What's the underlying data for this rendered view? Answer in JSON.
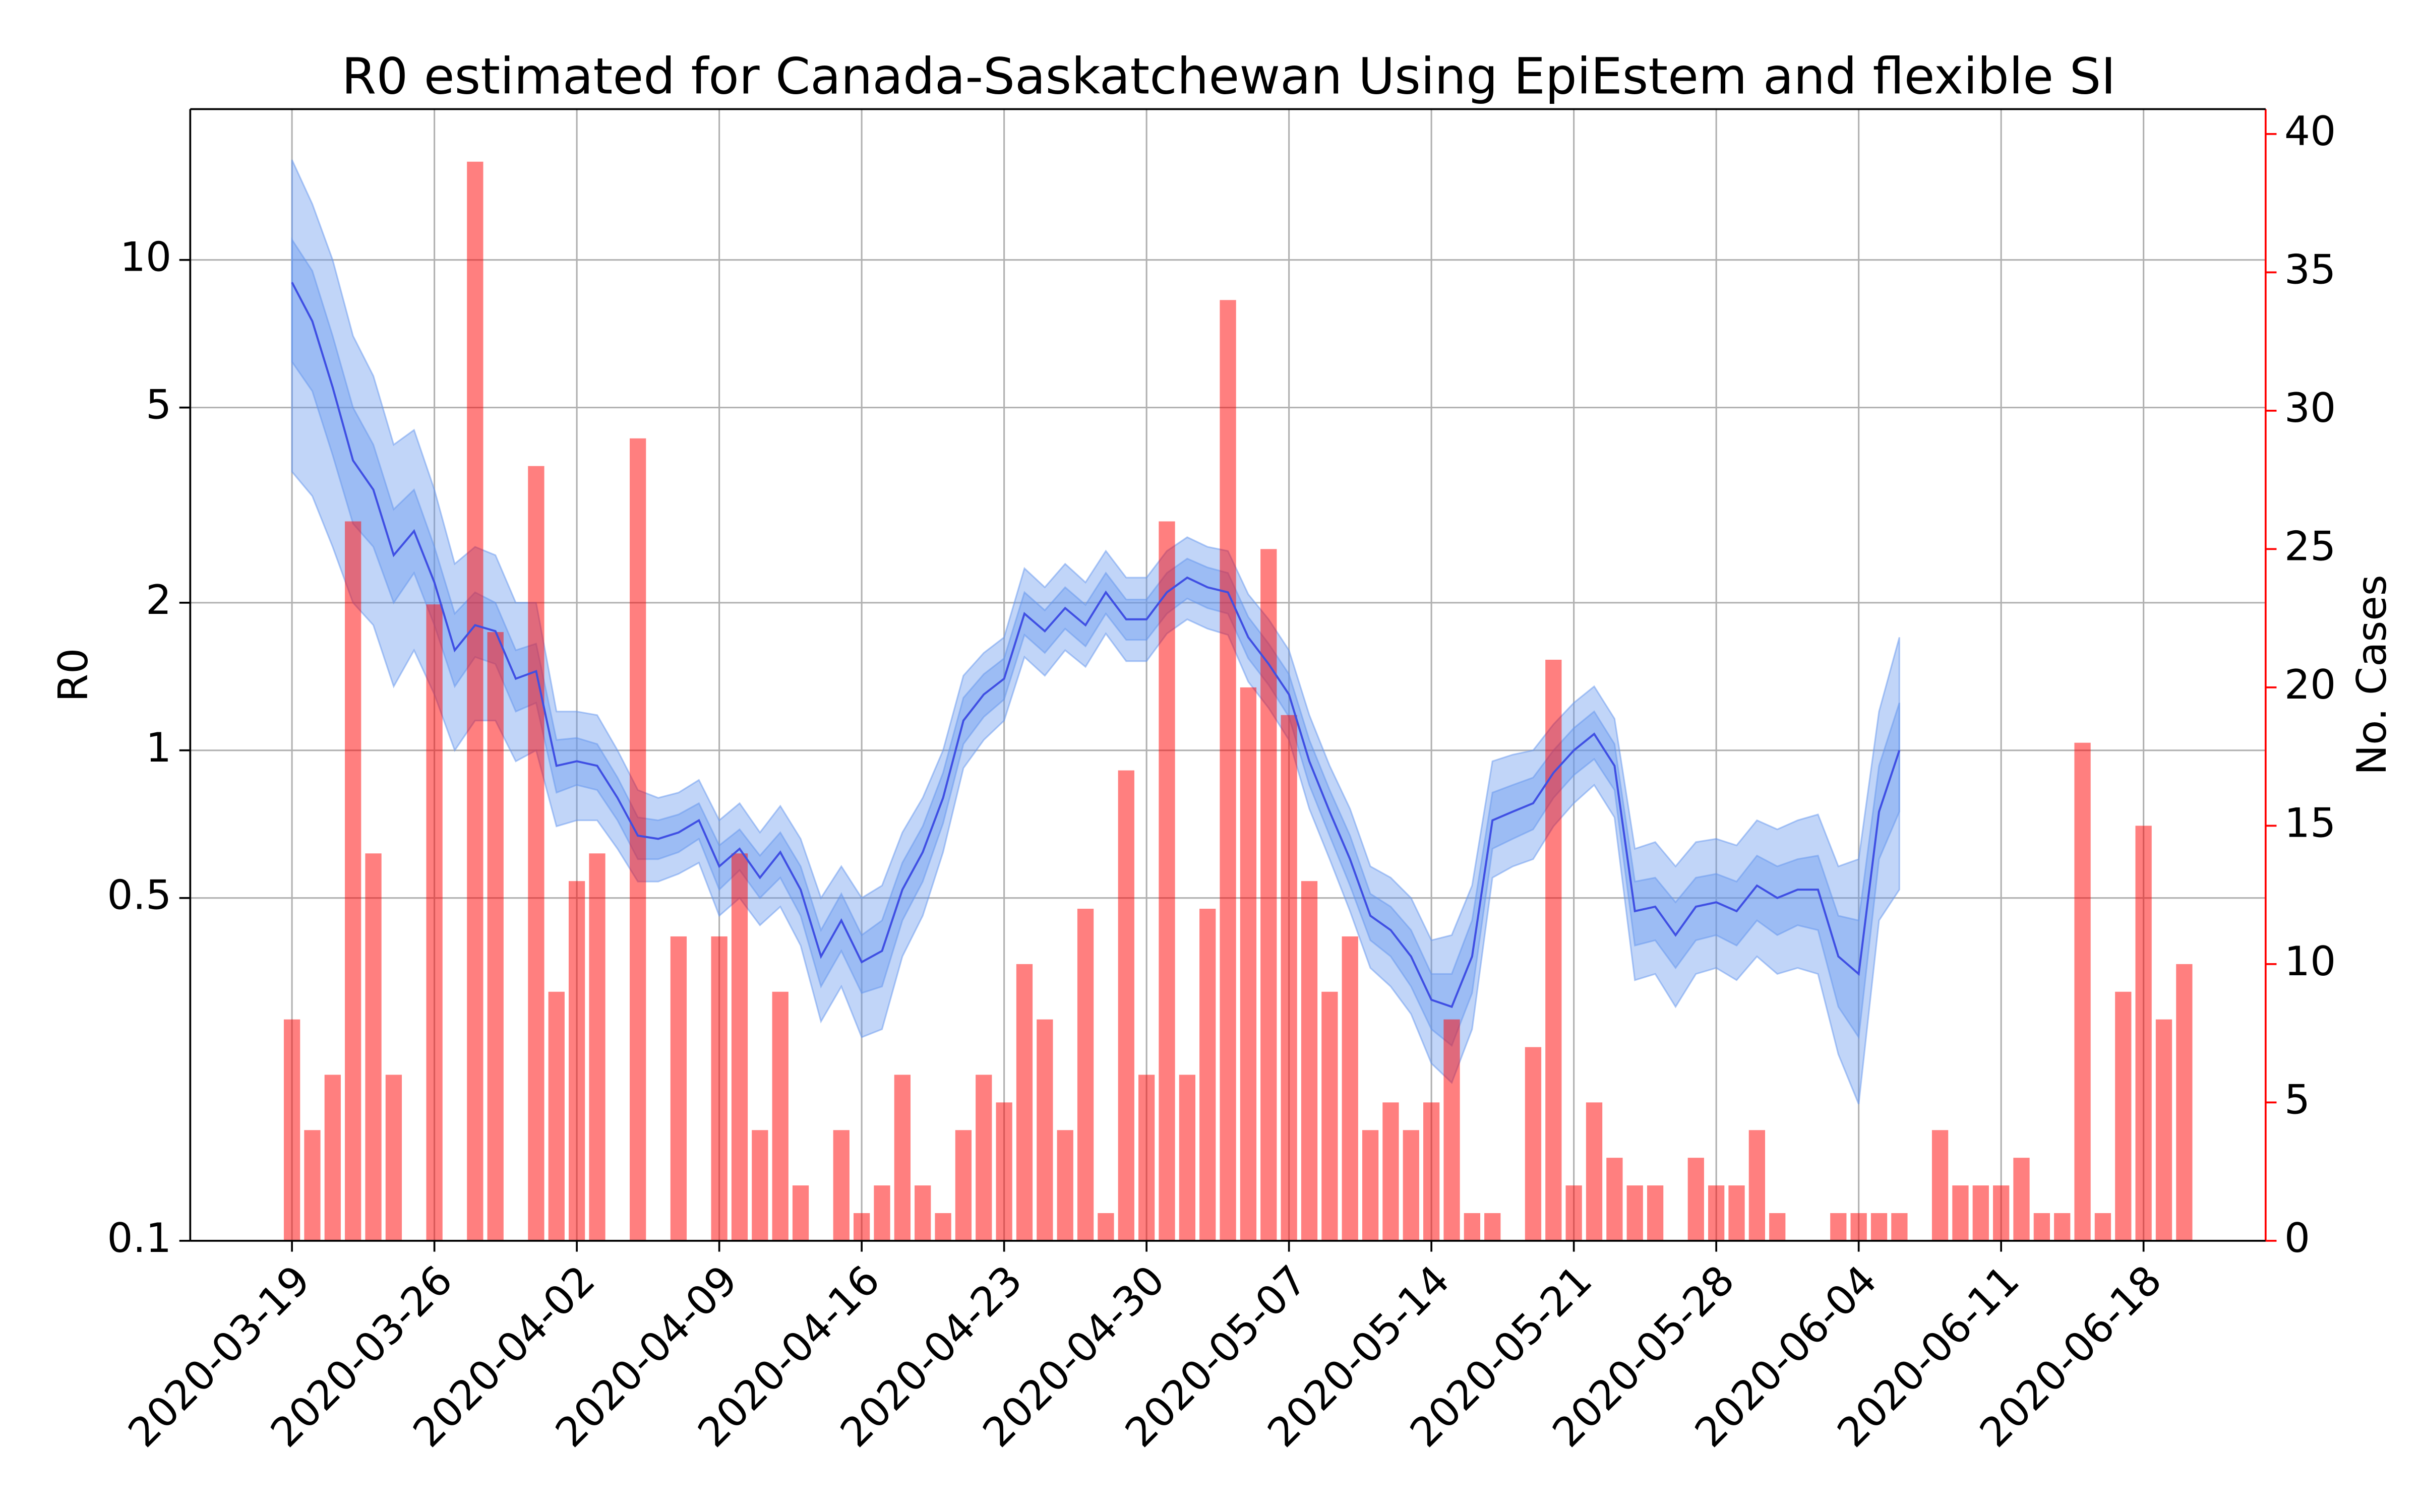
{
  "chart_data": {
    "type": "combo",
    "title": "R0 estimated for Canada-Saskatchewan Using EpiEstem and flexible SI",
    "ylabel": "R0",
    "y2label": "No. Cases",
    "x": [
      "2020-03-19",
      "2020-03-20",
      "2020-03-21",
      "2020-03-22",
      "2020-03-23",
      "2020-03-24",
      "2020-03-25",
      "2020-03-26",
      "2020-03-27",
      "2020-03-28",
      "2020-03-29",
      "2020-03-30",
      "2020-03-31",
      "2020-04-01",
      "2020-04-02",
      "2020-04-03",
      "2020-04-04",
      "2020-04-05",
      "2020-04-06",
      "2020-04-07",
      "2020-04-08",
      "2020-04-09",
      "2020-04-10",
      "2020-04-11",
      "2020-04-12",
      "2020-04-13",
      "2020-04-14",
      "2020-04-15",
      "2020-04-16",
      "2020-04-17",
      "2020-04-18",
      "2020-04-19",
      "2020-04-20",
      "2020-04-21",
      "2020-04-22",
      "2020-04-23",
      "2020-04-24",
      "2020-04-25",
      "2020-04-26",
      "2020-04-27",
      "2020-04-28",
      "2020-04-29",
      "2020-04-30",
      "2020-05-01",
      "2020-05-02",
      "2020-05-03",
      "2020-05-04",
      "2020-05-05",
      "2020-05-06",
      "2020-05-07",
      "2020-05-08",
      "2020-05-09",
      "2020-05-10",
      "2020-05-11",
      "2020-05-12",
      "2020-05-13",
      "2020-05-14",
      "2020-05-15",
      "2020-05-16",
      "2020-05-17",
      "2020-05-18",
      "2020-05-19",
      "2020-05-20",
      "2020-05-21",
      "2020-05-22",
      "2020-05-23",
      "2020-05-24",
      "2020-05-25",
      "2020-05-26",
      "2020-05-27",
      "2020-05-28",
      "2020-05-29",
      "2020-05-30",
      "2020-05-31",
      "2020-06-01",
      "2020-06-02",
      "2020-06-03",
      "2020-06-04",
      "2020-06-05",
      "2020-06-06",
      "2020-06-07",
      "2020-06-08",
      "2020-06-09",
      "2020-06-10",
      "2020-06-11",
      "2020-06-12",
      "2020-06-13",
      "2020-06-14",
      "2020-06-15",
      "2020-06-16",
      "2020-06-17",
      "2020-06-18",
      "2020-06-19",
      "2020-06-20"
    ],
    "xlim": [
      "2020-03-14",
      "2020-06-24"
    ],
    "xticks": [
      "2020-03-19",
      "2020-03-26",
      "2020-04-02",
      "2020-04-09",
      "2020-04-16",
      "2020-04-23",
      "2020-04-30",
      "2020-05-07",
      "2020-05-14",
      "2020-05-21",
      "2020-05-28",
      "2020-06-04",
      "2020-06-11",
      "2020-06-18"
    ],
    "ylim": [
      0.1,
      20.3
    ],
    "yticks": [
      0.1,
      0.5,
      1,
      2,
      5,
      10
    ],
    "log_y": true,
    "y2lim": [
      0,
      40.9
    ],
    "y2ticks": [
      0,
      5,
      10,
      15,
      20,
      25,
      30,
      35,
      40
    ],
    "y2color": "#ff0000",
    "grid": true,
    "series": [
      {
        "type": "band",
        "color": "#6495ed",
        "lower": [
          3.7,
          3.3,
          2.6,
          2.0,
          1.8,
          1.35,
          1.6,
          1.3,
          1.0,
          1.15,
          1.15,
          0.95,
          1.0,
          0.7,
          0.72,
          0.72,
          0.63,
          0.54,
          0.54,
          0.56,
          0.59,
          0.46,
          0.5,
          0.44,
          0.48,
          0.4,
          0.28,
          0.33,
          0.26,
          0.27,
          0.38,
          0.46,
          0.62,
          0.92,
          1.05,
          1.15,
          1.55,
          1.42,
          1.6,
          1.48,
          1.73,
          1.52,
          1.52,
          1.73,
          1.85,
          1.77,
          1.72,
          1.38,
          1.22,
          1.05,
          0.76,
          0.6,
          0.47,
          0.36,
          0.33,
          0.29,
          0.23,
          0.21,
          0.27,
          0.55,
          0.58,
          0.6,
          0.7,
          0.78,
          0.85,
          0.73,
          0.34,
          0.35,
          0.3,
          0.35,
          0.36,
          0.34,
          0.38,
          0.35,
          0.36,
          0.35,
          0.24,
          0.19,
          0.45,
          0.52,
          null,
          null,
          null,
          null,
          null,
          null,
          null,
          null,
          null,
          null,
          null,
          null,
          null,
          null
        ],
        "upper": [
          16,
          13,
          10,
          7.0,
          5.8,
          4.2,
          4.5,
          3.4,
          2.4,
          2.6,
          2.5,
          2.0,
          2.0,
          1.2,
          1.2,
          1.18,
          1.0,
          0.83,
          0.8,
          0.82,
          0.87,
          0.72,
          0.78,
          0.68,
          0.77,
          0.66,
          0.5,
          0.58,
          0.5,
          0.53,
          0.68,
          0.8,
          1.0,
          1.42,
          1.58,
          1.7,
          2.35,
          2.15,
          2.4,
          2.2,
          2.55,
          2.25,
          2.25,
          2.55,
          2.72,
          2.6,
          2.55,
          2.08,
          1.85,
          1.6,
          1.18,
          0.93,
          0.76,
          0.58,
          0.55,
          0.5,
          0.41,
          0.42,
          0.53,
          0.95,
          0.98,
          1.0,
          1.13,
          1.25,
          1.35,
          1.16,
          0.63,
          0.65,
          0.58,
          0.65,
          0.66,
          0.64,
          0.72,
          0.69,
          0.72,
          0.74,
          0.58,
          0.6,
          1.2,
          1.7,
          null,
          null,
          null,
          null,
          null,
          null,
          null,
          null,
          null,
          null,
          null,
          null,
          null,
          null
        ]
      },
      {
        "type": "band",
        "color": "#6495ed",
        "lower": [
          6.2,
          5.4,
          4.0,
          2.9,
          2.6,
          2.0,
          2.3,
          1.8,
          1.35,
          1.55,
          1.5,
          1.2,
          1.25,
          0.82,
          0.85,
          0.83,
          0.72,
          0.6,
          0.6,
          0.62,
          0.66,
          0.52,
          0.57,
          0.5,
          0.55,
          0.46,
          0.33,
          0.39,
          0.32,
          0.33,
          0.45,
          0.54,
          0.71,
          1.03,
          1.17,
          1.27,
          1.72,
          1.58,
          1.77,
          1.63,
          1.9,
          1.68,
          1.68,
          1.9,
          2.04,
          1.95,
          1.9,
          1.54,
          1.36,
          1.17,
          0.85,
          0.67,
          0.53,
          0.41,
          0.38,
          0.33,
          0.27,
          0.25,
          0.32,
          0.63,
          0.66,
          0.69,
          0.8,
          0.89,
          0.96,
          0.83,
          0.4,
          0.41,
          0.36,
          0.41,
          0.42,
          0.4,
          0.45,
          0.42,
          0.44,
          0.43,
          0.3,
          0.26,
          0.6,
          0.75,
          null,
          null,
          null,
          null,
          null,
          null,
          null,
          null,
          null,
          null,
          null,
          null,
          null,
          null
        ],
        "upper": [
          11.0,
          9.5,
          7.0,
          5.0,
          4.2,
          3.1,
          3.4,
          2.6,
          1.9,
          2.1,
          2.0,
          1.6,
          1.65,
          1.05,
          1.06,
          1.03,
          0.88,
          0.73,
          0.72,
          0.74,
          0.78,
          0.64,
          0.69,
          0.61,
          0.68,
          0.58,
          0.43,
          0.51,
          0.42,
          0.45,
          0.59,
          0.7,
          0.9,
          1.28,
          1.43,
          1.54,
          2.1,
          1.93,
          2.15,
          1.98,
          2.3,
          2.03,
          2.03,
          2.3,
          2.46,
          2.36,
          2.3,
          1.87,
          1.65,
          1.43,
          1.05,
          0.83,
          0.67,
          0.51,
          0.48,
          0.43,
          0.35,
          0.35,
          0.45,
          0.82,
          0.85,
          0.88,
          1.0,
          1.11,
          1.2,
          1.03,
          0.54,
          0.55,
          0.49,
          0.55,
          0.56,
          0.54,
          0.61,
          0.58,
          0.6,
          0.61,
          0.46,
          0.45,
          0.93,
          1.25,
          null,
          null,
          null,
          null,
          null,
          null,
          null,
          null,
          null,
          null,
          null,
          null,
          null,
          null
        ]
      },
      {
        "type": "bar",
        "axis": "y2",
        "color": "#ff0000",
        "values": [
          8,
          4,
          6,
          26,
          14,
          6,
          0,
          23,
          0,
          39,
          22,
          0,
          28,
          9,
          13,
          14,
          0,
          29,
          0,
          11,
          0,
          11,
          14,
          4,
          9,
          2,
          0,
          4,
          1,
          2,
          6,
          2,
          1,
          4,
          6,
          5,
          10,
          8,
          4,
          12,
          1,
          17,
          6,
          26,
          6,
          12,
          34,
          20,
          25,
          19,
          13,
          9,
          11,
          4,
          5,
          4,
          5,
          8,
          1,
          1,
          0,
          7,
          21,
          2,
          5,
          3,
          2,
          2,
          0,
          3,
          2,
          2,
          4,
          1,
          0,
          0,
          1,
          1,
          1,
          1,
          0,
          4,
          2,
          2,
          2,
          3,
          1,
          1,
          18,
          1,
          9,
          15,
          8,
          10
        ]
      },
      {
        "type": "line",
        "color": "#3f4fe3",
        "values": [
          9.0,
          7.5,
          5.5,
          3.9,
          3.4,
          2.5,
          2.8,
          2.2,
          1.6,
          1.8,
          1.75,
          1.4,
          1.45,
          0.93,
          0.95,
          0.93,
          0.8,
          0.67,
          0.66,
          0.68,
          0.72,
          0.58,
          0.63,
          0.55,
          0.62,
          0.52,
          0.38,
          0.45,
          0.37,
          0.39,
          0.52,
          0.62,
          0.8,
          1.15,
          1.3,
          1.4,
          1.9,
          1.75,
          1.95,
          1.8,
          2.1,
          1.85,
          1.85,
          2.1,
          2.25,
          2.15,
          2.1,
          1.7,
          1.5,
          1.3,
          0.95,
          0.75,
          0.6,
          0.46,
          0.43,
          0.38,
          0.31,
          0.3,
          0.38,
          0.72,
          0.75,
          0.78,
          0.9,
          1.0,
          1.08,
          0.93,
          0.47,
          0.48,
          0.42,
          0.48,
          0.49,
          0.47,
          0.53,
          0.5,
          0.52,
          0.52,
          0.38,
          0.35,
          0.75,
          1.0,
          null,
          null,
          null,
          null,
          null,
          null,
          null,
          null,
          null,
          null,
          null,
          null,
          null,
          null
        ]
      }
    ]
  }
}
